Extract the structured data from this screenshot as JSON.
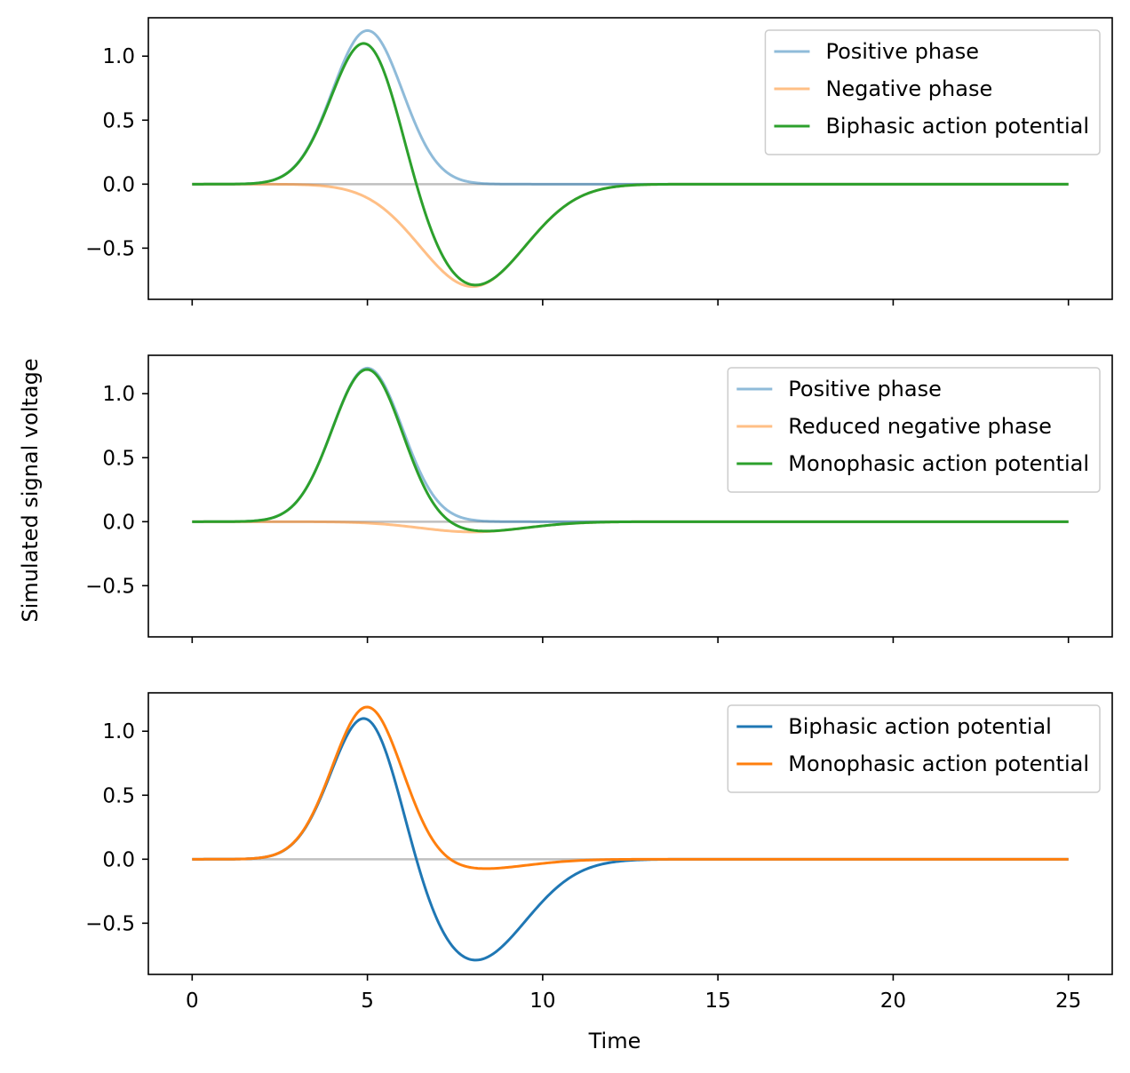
{
  "figure": {
    "xlabel": "Time",
    "ylabel": "Simulated signal voltage"
  },
  "chart_data": [
    {
      "type": "line",
      "xlim": [
        -1.25,
        26.25
      ],
      "ylim": [
        -0.9,
        1.3
      ],
      "x_ticks": [
        0,
        5,
        10,
        15,
        20,
        25
      ],
      "x_tick_labels": [
        "",
        "",
        "",
        "",
        "",
        ""
      ],
      "y_ticks": [
        1.0,
        0.5,
        0.0,
        -0.5
      ],
      "y_tick_labels": [
        "1.0",
        "0.5",
        "0.0",
        "−0.5"
      ],
      "legend_position": "upper right",
      "baseline": {
        "x": [
          0,
          25
        ],
        "y": [
          0,
          0
        ],
        "color": "#bfbfbf"
      },
      "series": [
        {
          "name": "Positive phase",
          "color": "#1f77b4",
          "alpha": 0.5,
          "peak_time": 5.0,
          "amplitude": 1.2,
          "width": 1.0
        },
        {
          "name": "Negative phase",
          "color": "#ff7f0e",
          "alpha": 0.5,
          "peak_time": 8.0,
          "amplitude": -0.8,
          "width": 1.5
        },
        {
          "name": "Biphasic action potential",
          "color": "#2ca02c",
          "alpha": 1.0,
          "components": [
            0,
            1
          ]
        }
      ]
    },
    {
      "type": "line",
      "xlim": [
        -1.25,
        26.25
      ],
      "ylim": [
        -0.9,
        1.3
      ],
      "x_ticks": [
        0,
        5,
        10,
        15,
        20,
        25
      ],
      "x_tick_labels": [
        "",
        "",
        "",
        "",
        "",
        ""
      ],
      "y_ticks": [
        1.0,
        0.5,
        0.0,
        -0.5
      ],
      "y_tick_labels": [
        "1.0",
        "0.5",
        "0.0",
        "−0.5"
      ],
      "legend_position": "upper right",
      "baseline": {
        "x": [
          0,
          25
        ],
        "y": [
          0,
          0
        ],
        "color": "#bfbfbf"
      },
      "series": [
        {
          "name": "Positive phase",
          "color": "#1f77b4",
          "alpha": 0.5,
          "peak_time": 5.0,
          "amplitude": 1.2,
          "width": 1.0
        },
        {
          "name": "Reduced negative phase",
          "color": "#ff7f0e",
          "alpha": 0.5,
          "peak_time": 8.0,
          "amplitude": -0.08,
          "width": 1.5
        },
        {
          "name": "Monophasic action potential",
          "color": "#2ca02c",
          "alpha": 1.0,
          "components": [
            0,
            1
          ]
        }
      ]
    },
    {
      "type": "line",
      "xlim": [
        -1.25,
        26.25
      ],
      "ylim": [
        -0.9,
        1.3
      ],
      "x_ticks": [
        0,
        5,
        10,
        15,
        20,
        25
      ],
      "x_tick_labels": [
        "0",
        "5",
        "10",
        "15",
        "20",
        "25"
      ],
      "y_ticks": [
        1.0,
        0.5,
        0.0,
        -0.5
      ],
      "y_tick_labels": [
        "1.0",
        "0.5",
        "0.0",
        "−0.5"
      ],
      "legend_position": "upper right",
      "baseline": {
        "x": [
          0,
          25
        ],
        "y": [
          0,
          0
        ],
        "color": "#bfbfbf"
      },
      "series": [
        {
          "name": "Biphasic action potential",
          "color": "#1f77b4",
          "alpha": 1.0,
          "components": [
            {
              "peak_time": 5.0,
              "amplitude": 1.2,
              "width": 1.0
            },
            {
              "peak_time": 8.0,
              "amplitude": -0.8,
              "width": 1.5
            }
          ]
        },
        {
          "name": "Monophasic action potential",
          "color": "#ff7f0e",
          "alpha": 1.0,
          "components": [
            {
              "peak_time": 5.0,
              "amplitude": 1.2,
              "width": 1.0
            },
            {
              "peak_time": 8.0,
              "amplitude": -0.08,
              "width": 1.5
            }
          ]
        }
      ]
    }
  ]
}
